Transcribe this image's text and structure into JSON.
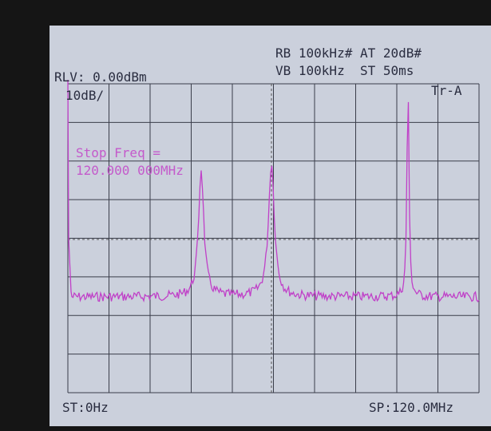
{
  "header": {
    "reference_level": "RLV: 0.00dBm",
    "scale": "10dB/",
    "rbw_line": "RB 100kHz# AT 20dB#",
    "vbw_line": "VB 100kHz  ST 50ms",
    "trace": "Tr-A"
  },
  "message": {
    "line1": "Stop Freq =",
    "line2": "120.000 000MHz"
  },
  "footer": {
    "start": "ST:0Hz",
    "stop": "SP:120.0MHz"
  }
}
